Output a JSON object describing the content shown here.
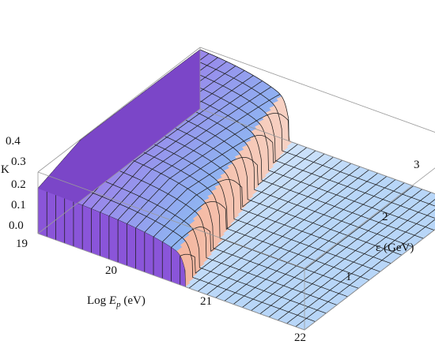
{
  "chart_data": {
    "type": "surface3d",
    "title": "",
    "axes": {
      "x": {
        "label_prefix": "Log ",
        "label_var": "E",
        "label_sub": "p",
        "label_unit": " (eV)",
        "range": [
          19,
          22
        ],
        "ticks": [
          "19",
          "20",
          "21",
          "22"
        ]
      },
      "y": {
        "label": "ε (GeV)",
        "range": [
          0,
          3
        ],
        "ticks": [
          "1",
          "2",
          "3"
        ]
      },
      "z": {
        "label": "K",
        "range": [
          0,
          0.4
        ],
        "ticks": [
          "0.0",
          "0.1",
          "0.2",
          "0.3",
          "0.4"
        ]
      }
    },
    "box": "on",
    "mesh": "on",
    "surface_model": {
      "description_of_values": "K as a function of Log Ep and epsilon; K ≈ 0 below threshold, rising steeply to ~0.38 above the threshold Log Ep ≈ 20.66 - 0.22*epsilon, then saturating near 0.4",
      "threshold_log_ep_at_eps_0": 20.66,
      "threshold_slope_per_gev": -0.22,
      "low_value": 0.0,
      "step_value": 0.26,
      "saturation_value": 0.4
    },
    "sample_points": [
      {
        "log_ep": 19.0,
        "epsilon": 0.0,
        "K": 0.12
      },
      {
        "log_ep": 19.0,
        "epsilon": 3.0,
        "K": 0.32
      },
      {
        "log_ep": 20.0,
        "epsilon": 0.0,
        "K": 0.0
      },
      {
        "log_ep": 20.2,
        "epsilon": 2.0,
        "K": 0.3
      },
      {
        "log_ep": 21.0,
        "epsilon": 0.0,
        "K": 0.0
      },
      {
        "log_ep": 22.0,
        "epsilon": 3.0,
        "K": 0.0
      }
    ],
    "colors": {
      "high_left": "#9f6be6",
      "high_mid": "#8fb6f2",
      "cliff": "#f4b7a0",
      "low": "#b8d6f8"
    }
  }
}
